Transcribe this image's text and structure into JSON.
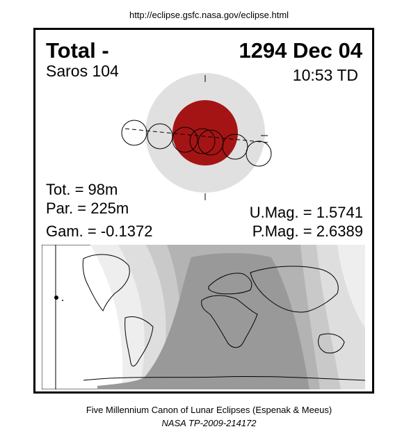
{
  "header": {
    "url": "http://eclipse.gsfc.nasa.gov/eclipse.html"
  },
  "eclipse": {
    "type": "Total  -",
    "date": "1294 Dec 04",
    "saros": "Saros 104",
    "time": "10:53 TD",
    "tot": "Tot. =  98m",
    "par": "Par. = 225m",
    "gamma": "Gam. = -0.1372",
    "umag": "U.Mag. = 1.5741",
    "pmag": "P.Mag. = 2.6389"
  },
  "colors": {
    "penumbra": "#e0e0e0",
    "umbra": "#a51414",
    "map_night": "#999999",
    "map_band_1": "#b3b3b3",
    "map_band_2": "#c9c9c9",
    "map_band_3": "#dedede",
    "map_band_4": "#eeeeee"
  },
  "footer": {
    "line1": "Five Millennium Canon of Lunar Eclipses (Espenak & Meeus)",
    "line2": "NASA TP-2009-214172"
  }
}
